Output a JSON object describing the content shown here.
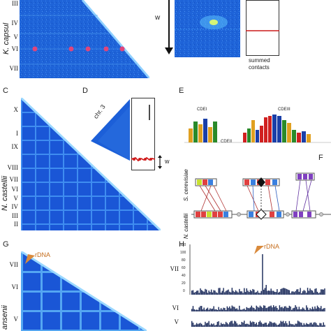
{
  "panels": {
    "C": "C",
    "D": "D",
    "E": "E",
    "F": "F",
    "G": "G",
    "H": "H"
  },
  "species": {
    "top": "K. capsul",
    "middle": "N. castellii",
    "bottom": "ansenii",
    "f_top": "S. cerevisiae",
    "f_bottom": "N. castellii"
  },
  "top_chromosomes": [
    "III",
    "IV",
    "V",
    "VI",
    "VII"
  ],
  "mid_chromosomes": [
    "X",
    "I",
    "IX",
    "VIII",
    "VII",
    "VI",
    "V",
    "IV",
    "III",
    "II"
  ],
  "bottom_chromosomes": [
    "VII",
    "VI",
    "V"
  ],
  "panel_b": {
    "w_label": "w",
    "summed_label_1": "summed",
    "summed_label_2": "contacts"
  },
  "panel_d": {
    "chr_label": "chr. 3",
    "w_label": "w"
  },
  "panel_e": {
    "cdei": "CDEI",
    "cdeii": "CDEII",
    "cdeiii": "CDEIII"
  },
  "panel_g": {
    "rdna": "rDNA"
  },
  "panel_h": {
    "rdna": "rDNA",
    "y_ticks": [
      "120",
      "100",
      "80",
      "60",
      "40",
      "20",
      "0"
    ],
    "tracks": [
      "VII",
      "VI",
      "V"
    ]
  },
  "colors": {
    "heatmap": "#1f5fd6",
    "heatmap_light": "#5aa8f0",
    "centromere_marker": "#e0457b",
    "rdna_arrow": "#d98a3c",
    "bars": "#1a2a5a",
    "signal": "#d01c1c"
  }
}
